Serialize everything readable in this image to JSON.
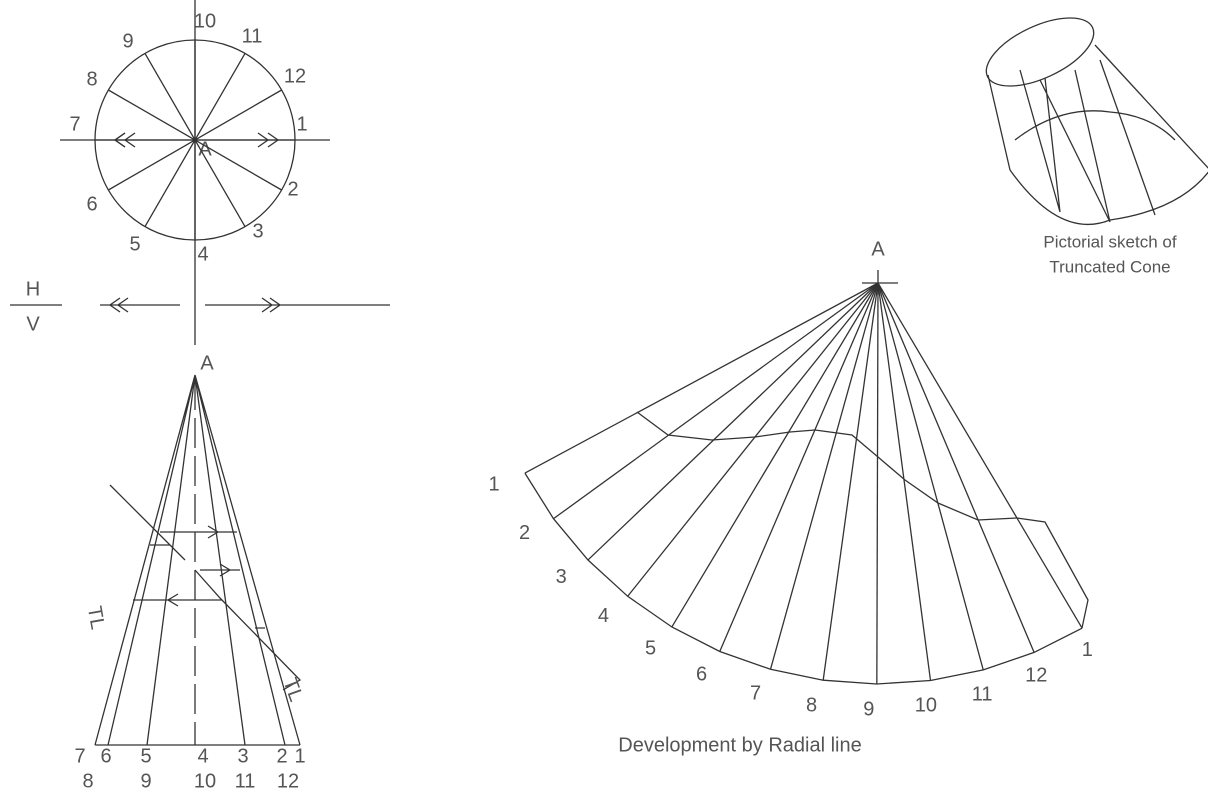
{
  "plan_view": {
    "center_label": "A",
    "points": [
      "1",
      "2",
      "3",
      "4",
      "5",
      "6",
      "7",
      "8",
      "9",
      "10",
      "11",
      "12"
    ]
  },
  "hv_line": {
    "top": "H",
    "bottom": "V"
  },
  "front_view": {
    "apex": "A",
    "base_row1": [
      "7",
      "6",
      "5",
      "4",
      "3",
      "2",
      "1"
    ],
    "base_row2": [
      "8",
      "9",
      "10",
      "11",
      "12"
    ],
    "true_length_labels": [
      "TL",
      "TL"
    ]
  },
  "development": {
    "apex": "A",
    "points": [
      "1",
      "2",
      "3",
      "4",
      "5",
      "6",
      "7",
      "8",
      "9",
      "10",
      "11",
      "12",
      "1"
    ],
    "caption": "Development by Radial line"
  },
  "pictorial": {
    "caption_lines": [
      "Pictorial sketch of",
      "Truncated Cone"
    ]
  }
}
